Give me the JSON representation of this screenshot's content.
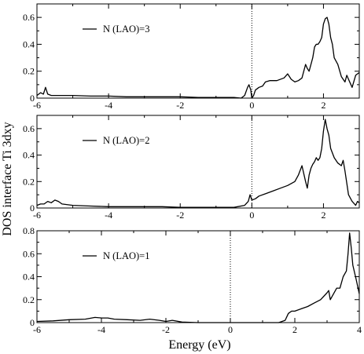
{
  "figure": {
    "xlabel": "Energy (eV)",
    "ylabel": "DOS interface Ti 3dxy"
  },
  "chart_data": [
    {
      "type": "line",
      "legend": "N (LAO)=3",
      "legend_position": "top-left",
      "xlim": [
        -6,
        3
      ],
      "ylim": [
        0,
        0.7
      ],
      "xticks": [
        -6,
        -4,
        -2,
        0,
        2
      ],
      "yticks": [
        0,
        0.2,
        0.4,
        0.6
      ],
      "xtick_labels": [
        "-6",
        "-4",
        "-2",
        "0",
        "2"
      ],
      "ytick_labels": [
        "0",
        "0.2",
        "0.4",
        "0.6"
      ],
      "fermi_level": 0,
      "series": [
        {
          "x": [
            -6.0,
            -5.9,
            -5.82,
            -5.76,
            -5.7,
            -5.6,
            -5.4,
            -5.0,
            -4.5,
            -4.0,
            -3.5,
            -3.0,
            -2.5,
            -2.0,
            -1.5,
            -1.0,
            -0.5,
            -0.3,
            -0.2,
            -0.12,
            -0.08,
            -0.03,
            0.0,
            0.05,
            0.1,
            0.2,
            0.3,
            0.38,
            0.5,
            0.7,
            0.9,
            1.0,
            1.1,
            1.2,
            1.3,
            1.4,
            1.5,
            1.55,
            1.6,
            1.7,
            1.75,
            1.8,
            1.85,
            1.9,
            1.95,
            2.0,
            2.05,
            2.1,
            2.15,
            2.2,
            2.25,
            2.3,
            2.4,
            2.5,
            2.6,
            2.65,
            2.7,
            2.8,
            2.9,
            2.95,
            3.0
          ],
          "y": [
            0.02,
            0.04,
            0.03,
            0.08,
            0.03,
            0.02,
            0.02,
            0.02,
            0.015,
            0.015,
            0.01,
            0.01,
            0.01,
            0.01,
            0.005,
            0.005,
            0.005,
            0.0,
            0.02,
            0.08,
            0.1,
            0.06,
            0.0,
            0.02,
            0.06,
            0.08,
            0.09,
            0.12,
            0.13,
            0.13,
            0.15,
            0.18,
            0.14,
            0.12,
            0.13,
            0.15,
            0.25,
            0.22,
            0.2,
            0.3,
            0.38,
            0.4,
            0.4,
            0.42,
            0.45,
            0.55,
            0.59,
            0.6,
            0.55,
            0.45,
            0.4,
            0.3,
            0.25,
            0.16,
            0.12,
            0.17,
            0.14,
            0.08,
            0.17,
            0.18,
            0.19
          ]
        }
      ]
    },
    {
      "type": "line",
      "legend": "N (LAO)=2",
      "legend_position": "top-left",
      "xlim": [
        -6,
        3
      ],
      "ylim": [
        0,
        0.7
      ],
      "xticks": [
        -6,
        -4,
        -2,
        0,
        2
      ],
      "yticks": [
        0,
        0.2,
        0.4,
        0.6
      ],
      "xtick_labels": [
        "-6",
        "-4",
        "-2",
        "0",
        "2"
      ],
      "ytick_labels": [
        "0",
        "0.2",
        "0.4",
        "0.6"
      ],
      "fermi_level": 0,
      "series": [
        {
          "x": [
            -6.0,
            -5.9,
            -5.8,
            -5.7,
            -5.6,
            -5.5,
            -5.4,
            -5.3,
            -5.0,
            -4.5,
            -4.0,
            -3.5,
            -3.0,
            -2.5,
            -2.0,
            -1.5,
            -1.0,
            -0.5,
            -0.2,
            -0.1,
            -0.05,
            0.0,
            0.1,
            0.2,
            0.4,
            0.6,
            0.8,
            1.0,
            1.2,
            1.3,
            1.4,
            1.5,
            1.55,
            1.6,
            1.65,
            1.7,
            1.75,
            1.8,
            1.85,
            1.9,
            1.95,
            2.0,
            2.05,
            2.1,
            2.15,
            2.2,
            2.3,
            2.4,
            2.5,
            2.55,
            2.6,
            2.7,
            2.8,
            2.9,
            2.95,
            3.0
          ],
          "y": [
            0.02,
            0.03,
            0.03,
            0.05,
            0.04,
            0.06,
            0.05,
            0.03,
            0.02,
            0.015,
            0.01,
            0.01,
            0.01,
            0.01,
            0.005,
            0.005,
            0.005,
            0.005,
            0.02,
            0.05,
            0.1,
            0.06,
            0.07,
            0.09,
            0.11,
            0.13,
            0.15,
            0.17,
            0.2,
            0.25,
            0.32,
            0.2,
            0.15,
            0.25,
            0.3,
            0.33,
            0.35,
            0.38,
            0.36,
            0.38,
            0.45,
            0.58,
            0.67,
            0.6,
            0.55,
            0.45,
            0.38,
            0.34,
            0.32,
            0.36,
            0.28,
            0.1,
            0.05,
            0.02,
            0.05,
            0.04
          ]
        }
      ]
    },
    {
      "type": "line",
      "legend": "N (LAO)=1",
      "legend_position": "top-left",
      "xlim": [
        -6,
        4
      ],
      "ylim": [
        0,
        0.8
      ],
      "xticks": [
        -6,
        -4,
        -2,
        0,
        2,
        4
      ],
      "yticks": [
        0,
        0.2,
        0.4,
        0.6,
        0.8
      ],
      "xtick_labels": [
        "-6",
        "-4",
        "-2",
        "0",
        "2",
        "4"
      ],
      "ytick_labels": [
        "0",
        "0.2",
        "0.4",
        "0.6",
        "0.8"
      ],
      "fermi_level": 0,
      "series": [
        {
          "x": [
            -6.0,
            -5.5,
            -5.0,
            -4.5,
            -4.2,
            -4.0,
            -3.8,
            -3.6,
            -3.2,
            -2.8,
            -2.5,
            -2.2,
            -2.0,
            -1.8,
            -1.5,
            -1.0,
            -0.5,
            0.0,
            0.5,
            1.0,
            1.5,
            1.7,
            1.8,
            1.9,
            2.0,
            2.2,
            2.4,
            2.6,
            2.8,
            3.0,
            3.05,
            3.1,
            3.2,
            3.3,
            3.4,
            3.5,
            3.6,
            3.65,
            3.7,
            3.75,
            3.8,
            3.9,
            4.0
          ],
          "y": [
            0.01,
            0.015,
            0.025,
            0.03,
            0.045,
            0.04,
            0.04,
            0.03,
            0.025,
            0.02,
            0.03,
            0.02,
            0.01,
            0.02,
            0.005,
            0.0,
            0.0,
            0.0,
            0.0,
            0.0,
            0.0,
            0.02,
            0.08,
            0.1,
            0.1,
            0.12,
            0.14,
            0.17,
            0.2,
            0.26,
            0.28,
            0.2,
            0.25,
            0.3,
            0.3,
            0.4,
            0.45,
            0.6,
            0.78,
            0.65,
            0.5,
            0.38,
            0.25
          ]
        }
      ]
    }
  ]
}
